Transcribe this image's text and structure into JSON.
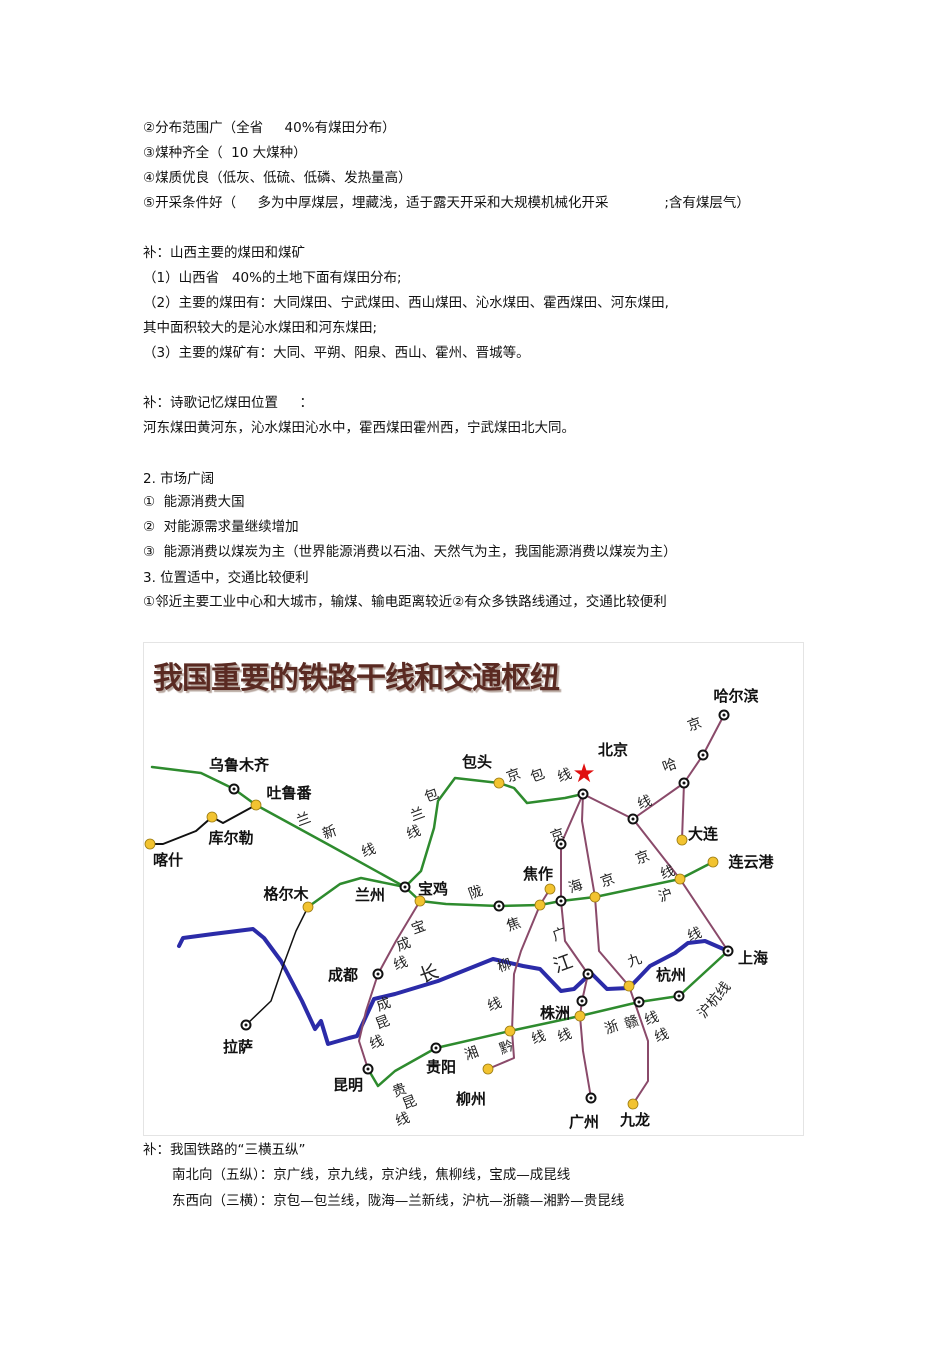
{
  "text_top": [
    "②分布范围广（全省     40%有煤田分布）",
    "③煤种齐全（  10 大煤种）",
    "④煤质优良（低灰、低硫、低磷、发热量高）",
    "⑤开采条件好（     多为中厚煤层，埋藏浅，适于露天开采和大规模机械化开采             ;含有煤层气）",
    "补：山西主要的煤田和煤矿",
    "（1）山西省   40%的土地下面有煤田分布;",
    "（2）主要的煤田有：大同煤田、宁武煤田、西山煤田、沁水煤田、霍西煤田、河东煤田,",
    "其中面积较大的是沁水煤田和河东煤田;",
    "（3）主要的煤矿有：大同、平朔、阳泉、西山、霍州、晋城等。",
    "补：诗歌记忆煤田位置     ：",
    "河东煤田黄河东，沁水煤田沁水中，霍西煤田霍州西，宁武煤田北大同。",
    "2. 市场广阔",
    "①  能源消费大国",
    "②  对能源需求量继续增加",
    "③  能源消费以煤炭为主（世界能源消费以石油、天然气为主，我国能源消费以煤炭为主）",
    "3. 位置适中，交通比较便利",
    "①邻近主要工业中心和大城市，输煤、输电距离较近②有众多铁路线通过，交通比较便利"
  ],
  "map": {
    "title": "我国重要的铁路干线和交通枢纽",
    "colors": {
      "trunk_green": "#2e8b2e",
      "trunk_purple": "#8a4a6a",
      "yangtze_blue": "#2b2ba8",
      "branch_black": "#111111",
      "city_yellow": "#f2c330",
      "capital_red": "#e01010"
    },
    "cities": [
      "哈尔滨",
      "北京",
      "包头",
      "乌鲁木齐",
      "吐鲁番",
      "库尔勒",
      "喀什",
      "大连",
      "连云港",
      "格尔木",
      "兰州",
      "宝鸡",
      "焦作",
      "上海",
      "成都",
      "杭州",
      "拉萨",
      "株洲",
      "贵阳",
      "昆明",
      "柳州",
      "广州",
      "九龙"
    ],
    "line_chars": [
      "京",
      "哈",
      "线",
      "京",
      "包",
      "线",
      "包",
      "兰",
      "线",
      "兰",
      "新",
      "线",
      "京",
      "京",
      "线",
      "沪",
      "陇",
      "海",
      "京",
      "宝",
      "成",
      "线",
      "焦",
      "广",
      "江",
      "九",
      "长",
      "柳",
      "线",
      "线",
      "成",
      "昆",
      "线",
      "湘",
      "黔",
      "线",
      "线",
      "浙",
      "赣",
      "线",
      "线",
      "沪杭线",
      "贵",
      "昆",
      "线"
    ]
  },
  "text_bottom": [
    "补：我国铁路的“三横五纵”",
    "南北向（五纵）：京广线，京九线，京沪线，焦柳线，宝成—成昆线",
    "东西向（三横）：京包—包兰线，陇海—兰新线，沪杭—浙赣—湘黔—贵昆线"
  ]
}
